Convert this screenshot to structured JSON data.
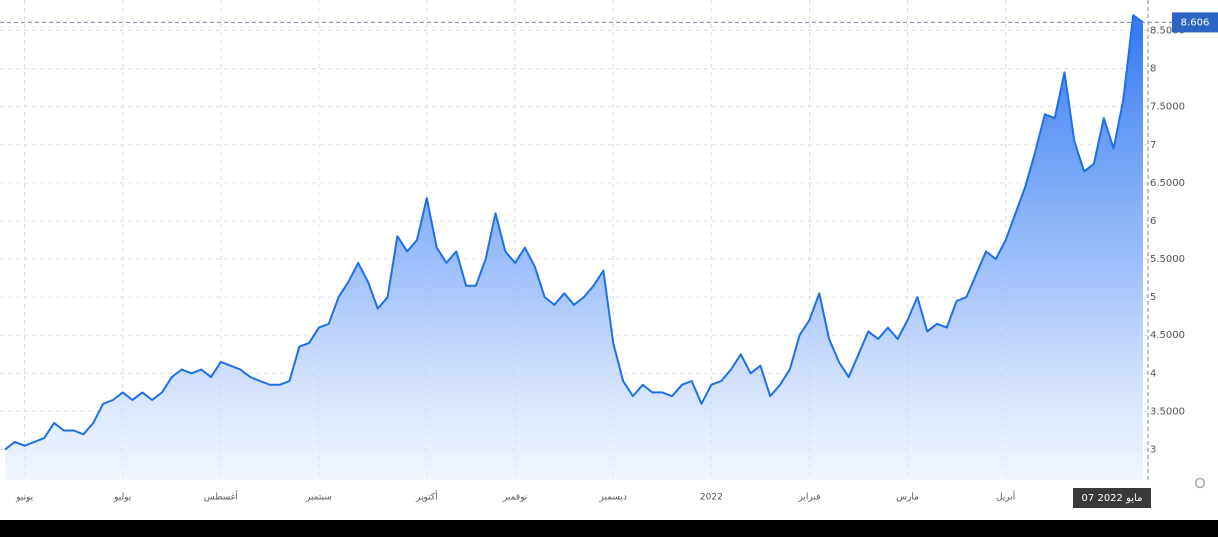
{
  "chart_data": {
    "type": "area",
    "color": "#1f6fe5",
    "values": [
      3.0,
      3.1,
      3.05,
      3.1,
      3.15,
      3.35,
      3.25,
      3.25,
      3.2,
      3.35,
      3.6,
      3.65,
      3.75,
      3.65,
      3.75,
      3.65,
      3.75,
      3.95,
      4.05,
      4.0,
      4.05,
      3.95,
      4.15,
      4.1,
      4.05,
      3.95,
      3.9,
      3.85,
      3.85,
      3.9,
      4.35,
      4.4,
      4.6,
      4.65,
      5.0,
      5.2,
      5.45,
      5.2,
      4.85,
      5.0,
      5.8,
      5.6,
      5.75,
      6.3,
      5.65,
      5.45,
      5.6,
      5.15,
      5.15,
      5.5,
      6.1,
      5.6,
      5.45,
      5.65,
      5.4,
      5.0,
      4.9,
      5.05,
      4.9,
      5.0,
      5.15,
      5.35,
      4.4,
      3.9,
      3.7,
      3.85,
      3.75,
      3.75,
      3.7,
      3.85,
      3.9,
      3.6,
      3.85,
      3.9,
      4.05,
      4.25,
      4.0,
      4.1,
      3.7,
      3.85,
      4.05,
      4.5,
      4.7,
      5.05,
      4.45,
      4.15,
      3.95,
      4.25,
      4.55,
      4.45,
      4.6,
      4.45,
      4.7,
      5.0,
      4.55,
      4.65,
      4.6,
      4.95,
      5.0,
      5.3,
      5.6,
      5.5,
      5.75,
      6.1,
      6.45,
      6.9,
      7.4,
      7.35,
      7.95,
      7.05,
      6.65,
      6.75,
      7.35,
      6.95,
      7.6,
      8.7,
      8.606
    ],
    "xlim": [
      0,
      116
    ],
    "xticks": [
      {
        "value": 2,
        "label": "يونيو"
      },
      {
        "value": 12,
        "label": "يوليو"
      },
      {
        "value": 22,
        "label": "أغسطس"
      },
      {
        "value": 32,
        "label": "سبتمبر"
      },
      {
        "value": 43,
        "label": "أكتوبر"
      },
      {
        "value": 52,
        "label": "نوفمبر"
      },
      {
        "value": 62,
        "label": "ديسمبر"
      },
      {
        "value": 72,
        "label": "2022"
      },
      {
        "value": 82,
        "label": "فبراير"
      },
      {
        "value": 92,
        "label": "مارس"
      },
      {
        "value": 102,
        "label": "أبريل"
      }
    ],
    "crosshair_label": "07 مايو 2022",
    "ylim": [
      2.6,
      8.9
    ],
    "yticks": [
      3,
      {
        "value": 3.5,
        "label": "3.5000"
      },
      4,
      {
        "value": 4.5,
        "label": "4.5000"
      },
      5,
      {
        "value": 5.5,
        "label": "5.5000"
      },
      6,
      {
        "value": 6.5,
        "label": "6.5000"
      },
      7,
      {
        "value": 7.5,
        "label": "7.5000"
      },
      8,
      {
        "value": 8.5,
        "label": "8.5000"
      }
    ],
    "grid": true
  }
}
